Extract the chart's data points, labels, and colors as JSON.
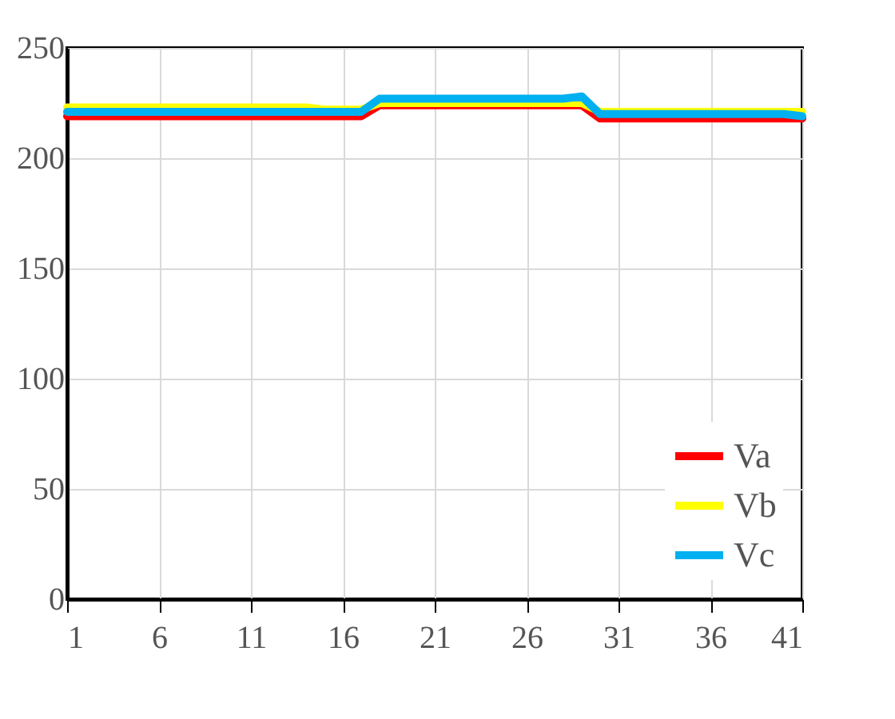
{
  "chart_data": {
    "type": "line",
    "x": [
      1,
      2,
      3,
      4,
      5,
      6,
      7,
      8,
      9,
      10,
      11,
      12,
      13,
      14,
      15,
      16,
      17,
      18,
      19,
      20,
      21,
      22,
      23,
      24,
      25,
      26,
      27,
      28,
      29,
      30,
      31,
      32,
      33,
      34,
      35,
      36,
      37,
      38,
      39,
      40,
      41
    ],
    "series": [
      {
        "name": "Va",
        "color": "#ff0000",
        "values": [
          219,
          219,
          219,
          219,
          219,
          219,
          219,
          219,
          219,
          219,
          219,
          219,
          219,
          219,
          219,
          219,
          219,
          224,
          224,
          224,
          224,
          224,
          224,
          224,
          224,
          224,
          224,
          224,
          224,
          218,
          218,
          218,
          218,
          218,
          218,
          218,
          218,
          218,
          218,
          218,
          218
        ]
      },
      {
        "name": "Vb",
        "color": "#ffff00",
        "values": [
          223,
          223,
          223,
          223,
          223,
          223,
          223,
          223,
          223,
          223,
          223,
          223,
          223,
          223,
          222,
          222,
          222,
          225,
          225,
          225,
          225,
          225,
          225,
          225,
          225,
          225,
          225,
          225,
          225,
          221,
          221,
          221,
          221,
          221,
          221,
          221,
          221,
          221,
          221,
          221,
          221
        ]
      },
      {
        "name": "Vc",
        "color": "#00b0f0",
        "values": [
          221,
          221,
          221,
          221,
          221,
          221,
          221,
          221,
          221,
          221,
          221,
          221,
          221,
          221,
          221,
          221,
          221,
          227,
          227,
          227,
          227,
          227,
          227,
          227,
          227,
          227,
          227,
          227,
          228,
          220,
          220,
          220,
          220,
          220,
          220,
          220,
          220,
          220,
          220,
          220,
          219
        ]
      }
    ],
    "xlim": [
      1,
      41
    ],
    "xticks": [
      1,
      6,
      11,
      16,
      21,
      26,
      31,
      36,
      41
    ],
    "ylim": [
      0,
      250
    ],
    "yticks": [
      0,
      50,
      100,
      150,
      200,
      250
    ],
    "grid": true,
    "legend": "bottom right",
    "marker": "none",
    "line_style": "solid"
  }
}
